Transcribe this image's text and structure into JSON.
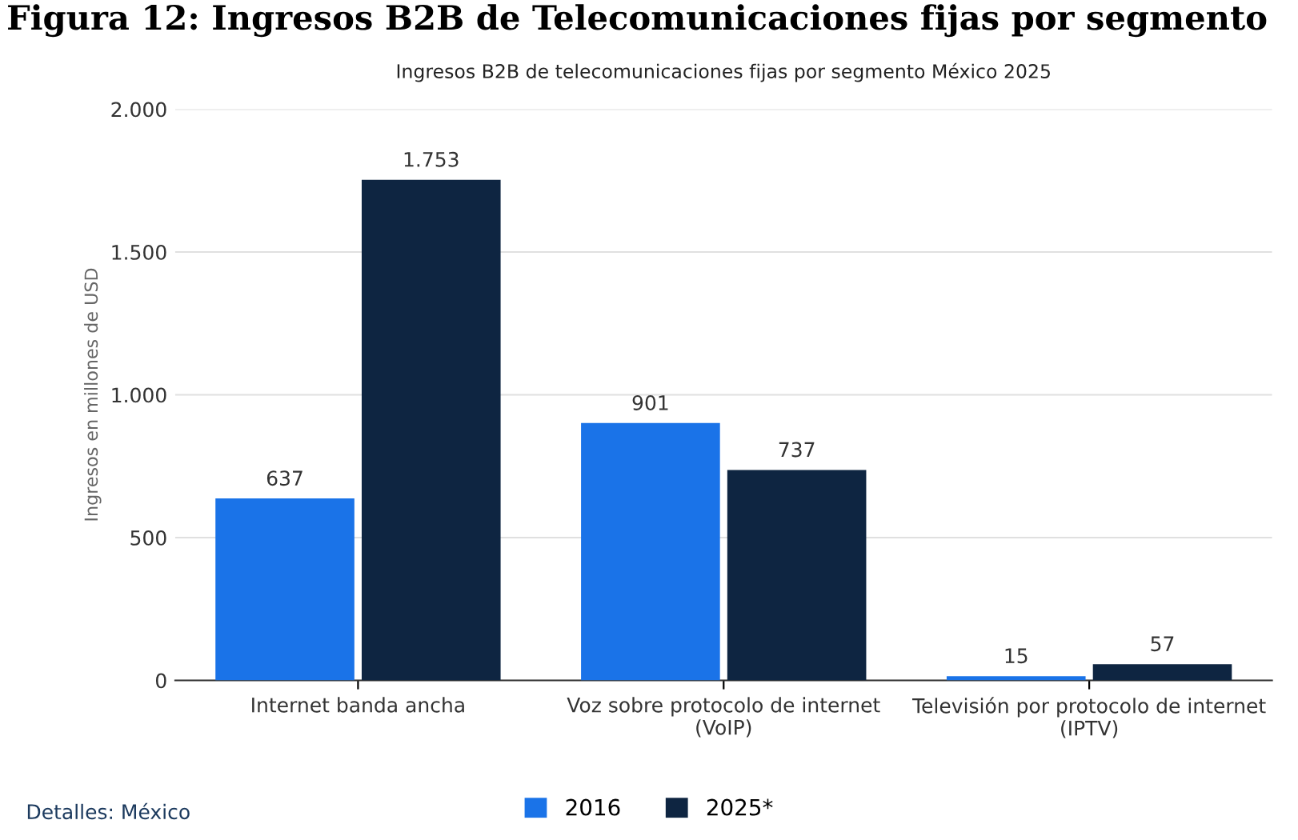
{
  "chart_data": {
    "type": "bar",
    "title": "Ingresos B2B de telecomunicaciones fijas por segmento México 2025",
    "ylabel": "Ingresos en millones de USD",
    "categories": [
      "Internet banda ancha",
      "Voz sobre protocolo de internet\n(VoIP)",
      "Televisión por protocolo de internet\n(IPTV)"
    ],
    "series": [
      {
        "name": "2016",
        "color": "#1a73e8",
        "values": [
          637,
          901,
          15
        ],
        "value_labels": [
          "637",
          "901",
          "15"
        ]
      },
      {
        "name": "2025*",
        "color": "#0e2541",
        "values": [
          1753,
          737,
          57
        ],
        "value_labels": [
          "1.753",
          "737",
          "57"
        ]
      }
    ],
    "ylim": [
      0,
      2000
    ],
    "yticks": [
      0,
      {
        "value": 500,
        "label": "500"
      },
      {
        "value": 1000,
        "label": "1.000"
      },
      {
        "value": 1500,
        "label": "1.500"
      },
      {
        "value": 2000,
        "label": "2.000"
      }
    ],
    "grid": "y",
    "legend": "bottom",
    "annotations": [
      "Figura 12: Ingresos B2B de Telecomunicaciones fijas por segmento",
      "Detalles: México"
    ]
  }
}
